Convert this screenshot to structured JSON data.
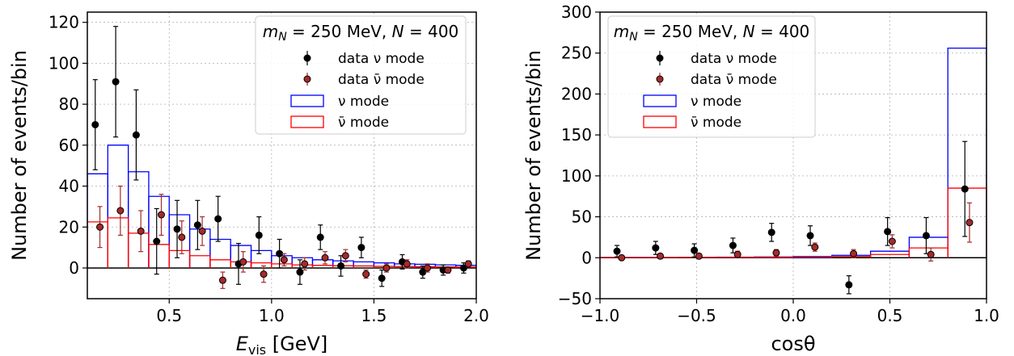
{
  "chart_data": [
    {
      "type": "histogram+errorbar",
      "xlabel": "E",
      "xlabel_sub": "vis",
      "xlabel_unit": " [GeV]",
      "ylabel": "Number of events/bin",
      "xlim": [
        0.1,
        2.0
      ],
      "ylim": [
        -15,
        125
      ],
      "xticks": [
        0.5,
        1.0,
        1.5,
        2.0
      ],
      "xtick_labels": [
        "0.5",
        "1.0",
        "1.5",
        "2.0"
      ],
      "yticks": [
        0,
        20,
        40,
        60,
        80,
        100,
        120
      ],
      "ytick_labels": [
        "0",
        "20",
        "40",
        "60",
        "80",
        "100",
        "120"
      ],
      "grid": true,
      "legend_position": "top-right",
      "legend_title": "m_N = 250 MeV, N = 400",
      "legend_title_parts": [
        "m",
        "N",
        " = 250 MeV, ",
        "N",
        " = 400"
      ],
      "legend_entries": [
        "data ν mode",
        "data ν̄ mode",
        "ν mode",
        "ν̄ mode"
      ],
      "colors": {
        "nu_hist": "#0000ff",
        "nubar_hist": "#ff0000",
        "nu_data": "#000000",
        "nubar_data": "#a52a2a"
      },
      "bin_edges": [
        0.1,
        0.2,
        0.3,
        0.4,
        0.5,
        0.6,
        0.7,
        0.8,
        0.9,
        1.0,
        1.1,
        1.2,
        1.3,
        1.4,
        1.5,
        1.6,
        1.7,
        1.8,
        1.9,
        2.0
      ],
      "series": [
        {
          "name": "ν mode",
          "kind": "step",
          "values": [
            46,
            60,
            47,
            35,
            26,
            19,
            14,
            11,
            8.5,
            6,
            5,
            4,
            3.5,
            3,
            2.5,
            2,
            1.8,
            1.5,
            1.3
          ]
        },
        {
          "name": "ν̄ mode",
          "kind": "step",
          "values": [
            22.5,
            24.5,
            17,
            11.5,
            8.5,
            6,
            4,
            3,
            2.5,
            2,
            1.5,
            1.3,
            1.1,
            1,
            0.8,
            0.7,
            0.6,
            0.5,
            0.4
          ]
        },
        {
          "name": "data ν mode",
          "kind": "errorbar",
          "x": [
            0.15,
            0.25,
            0.35,
            0.45,
            0.55,
            0.65,
            0.75,
            0.85,
            0.95,
            1.05,
            1.15,
            1.25,
            1.35,
            1.45,
            1.55,
            1.65,
            1.75,
            1.85,
            1.95
          ],
          "y": [
            70,
            91,
            65,
            13,
            19,
            21,
            24,
            2,
            16,
            7,
            -2,
            15,
            1,
            10,
            -5,
            3,
            -2,
            -1,
            0
          ],
          "err": [
            22,
            27,
            22,
            16,
            14,
            12,
            11,
            10,
            9,
            7,
            6,
            6,
            5,
            5,
            4,
            3.5,
            3,
            2.5,
            2.5
          ]
        },
        {
          "name": "data ν̄ mode",
          "kind": "errorbar",
          "x": [
            0.15,
            0.25,
            0.35,
            0.45,
            0.55,
            0.65,
            0.75,
            0.85,
            0.95,
            1.05,
            1.15,
            1.25,
            1.35,
            1.45,
            1.55,
            1.65,
            1.75,
            1.85,
            1.95
          ],
          "y": [
            20,
            28,
            18,
            26,
            15,
            18,
            -6,
            3,
            -3,
            4,
            2,
            5,
            6,
            -3,
            0,
            2,
            0,
            -1,
            2
          ],
          "err": [
            10,
            12,
            10,
            10,
            8,
            7,
            4,
            5,
            4,
            3,
            3,
            3,
            3,
            2,
            2,
            2,
            2,
            1.5,
            1.5
          ]
        }
      ]
    },
    {
      "type": "histogram+errorbar",
      "xlabel": "cosθ",
      "ylabel": "Number of events/bin",
      "xlim": [
        -1.0,
        1.0
      ],
      "ylim": [
        -50,
        300
      ],
      "xticks": [
        -1.0,
        -0.5,
        0.0,
        0.5,
        1.0
      ],
      "xtick_labels": [
        "−1.0",
        "−0.5",
        "0.0",
        "0.5",
        "1.0"
      ],
      "yticks": [
        -50,
        0,
        50,
        100,
        150,
        200,
        250,
        300
      ],
      "ytick_labels": [
        "−50",
        "0",
        "50",
        "100",
        "150",
        "200",
        "250",
        "300"
      ],
      "grid": true,
      "legend_position": "top-left",
      "legend_title": "m_N = 250 MeV, N = 400",
      "legend_title_parts": [
        "m",
        "N",
        " = 250 MeV, ",
        "N",
        " = 400"
      ],
      "legend_entries": [
        "data ν mode",
        "data ν̄ mode",
        "ν mode",
        "ν̄ mode"
      ],
      "colors": {
        "nu_hist": "#0000ff",
        "nubar_hist": "#ff0000",
        "nu_data": "#000000",
        "nubar_data": "#a52a2a"
      },
      "bin_edges": [
        -1.0,
        -0.8,
        -0.6,
        -0.4,
        -0.2,
        0.0,
        0.2,
        0.4,
        0.6,
        0.8,
        1.0
      ],
      "series": [
        {
          "name": "ν mode",
          "kind": "step",
          "values": [
            0.5,
            0.5,
            0.6,
            0.8,
            1,
            1.5,
            3,
            8,
            25,
            256
          ]
        },
        {
          "name": "ν̄ mode",
          "kind": "step",
          "values": [
            0.3,
            0.3,
            0.4,
            0.5,
            0.6,
            0.8,
            1.5,
            4,
            12,
            85
          ]
        },
        {
          "name": "data ν mode",
          "kind": "errorbar",
          "x": [
            -0.9,
            -0.7,
            -0.5,
            -0.3,
            -0.1,
            0.1,
            0.3,
            0.5,
            0.7,
            0.9
          ],
          "y": [
            8,
            12,
            9,
            15,
            31,
            27,
            -33,
            32,
            27,
            84
          ],
          "err": [
            7,
            8,
            8,
            9,
            11,
            12,
            11,
            17,
            22,
            58
          ]
        },
        {
          "name": "data ν̄ mode",
          "kind": "errorbar",
          "x": [
            -0.9,
            -0.7,
            -0.5,
            -0.3,
            -0.1,
            0.1,
            0.3,
            0.5,
            0.7,
            0.9
          ],
          "y": [
            0,
            2,
            2,
            4,
            6,
            13,
            5,
            20,
            4,
            43
          ],
          "err": [
            2,
            3,
            3,
            4,
            4,
            5,
            5,
            8,
            8,
            24
          ]
        }
      ]
    }
  ]
}
